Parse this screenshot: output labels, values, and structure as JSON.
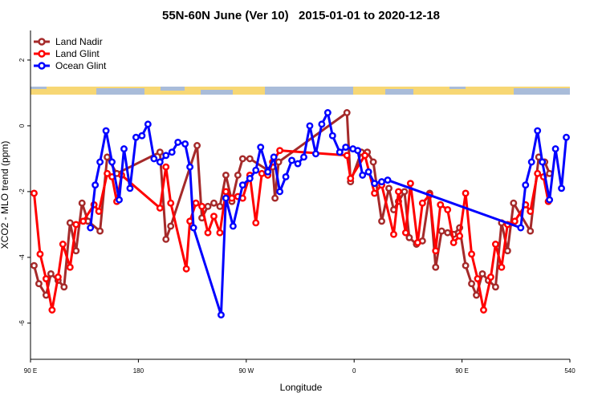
{
  "chart_data": {
    "type": "line",
    "title": "55N-60N June (Ver 10)   2015-01-01 to 2020-12-18",
    "x_label": "Longitude",
    "y_label": "XCO2 - MLO trend (ppm)",
    "xlim": [
      90,
      540
    ],
    "xticks": [
      {
        "value": 90,
        "label": "90 E"
      },
      180,
      {
        "value": 270,
        "label": "90 W"
      },
      {
        "value": 360,
        "label": "0"
      },
      {
        "value": 450,
        "label": "90 E"
      },
      540
    ],
    "ylim": [
      -7.1,
      2.9
    ],
    "yticks": [
      -6,
      -4,
      -2,
      0,
      2
    ],
    "legend": "top-left",
    "series": [
      {
        "name": "Land Nadir",
        "color": "#a52a2a",
        "x": [
          93,
          97,
          103,
          107,
          113,
          118,
          123,
          128,
          133,
          138,
          148,
          154,
          162,
          198,
          203,
          207,
          229,
          233,
          238,
          243,
          248,
          253,
          258,
          263,
          267,
          273,
          288,
          292,
          294,
          297,
          354,
          357,
          366,
          371,
          376,
          383,
          389,
          393,
          397,
          402,
          406,
          412,
          417,
          423,
          428,
          433,
          438,
          443,
          448,
          453,
          458,
          462,
          467,
          472,
          478,
          483,
          488,
          493,
          507,
          514,
          519,
          523
        ],
        "values": [
          -4.25,
          -4.8,
          -5.15,
          -4.5,
          -4.7,
          -4.9,
          -2.95,
          -3.8,
          -2.35,
          -2.9,
          -3.2,
          -0.95,
          -1.45,
          -0.8,
          -3.45,
          -3.05,
          -0.6,
          -2.8,
          -2.45,
          -2.35,
          -2.45,
          -1.5,
          -2.3,
          -1.5,
          -1.0,
          -1.0,
          -1.35,
          -1.25,
          -2.2,
          -1.1,
          0.4,
          -1.7,
          -0.8,
          -0.8,
          -1.1,
          -2.9,
          -1.9,
          -2.55,
          -2.3,
          -2.0,
          -3.4,
          -3.6,
          -3.5,
          -2.05,
          -4.3,
          -3.2,
          -3.25,
          -3.3,
          -3.1,
          -4.25,
          -4.8,
          -5.15,
          -4.5,
          -4.7,
          -4.9,
          -2.95,
          -3.8,
          -2.35,
          -3.2,
          -0.95,
          -1.1,
          -1.45
        ]
      },
      {
        "name": "Land Glint",
        "color": "#ff0000",
        "x": [
          93,
          98,
          103,
          108,
          113,
          117,
          123,
          128,
          134,
          143,
          147,
          154,
          158,
          162,
          166,
          198,
          203,
          207,
          220,
          223,
          228,
          233,
          238,
          243,
          248,
          253,
          258,
          263,
          267,
          273,
          278,
          283,
          288,
          292,
          298,
          354,
          357,
          369,
          377,
          383,
          393,
          397,
          403,
          407,
          413,
          417,
          423,
          428,
          432,
          438,
          443,
          448,
          453,
          458,
          463,
          468,
          474,
          478,
          483,
          488,
          494,
          503,
          507,
          513,
          518,
          522
        ],
        "values": [
          -2.05,
          -3.9,
          -4.65,
          -5.6,
          -4.6,
          -3.6,
          -4.3,
          -3.0,
          -2.9,
          -2.4,
          -2.6,
          -1.45,
          -1.55,
          -2.3,
          -1.5,
          -2.5,
          -1.25,
          -2.35,
          -4.35,
          -2.9,
          -2.35,
          -2.45,
          -3.25,
          -2.75,
          -3.25,
          -2.0,
          -2.2,
          -2.15,
          -2.2,
          -1.5,
          -2.95,
          -1.45,
          -1.5,
          -1.1,
          -0.75,
          -0.9,
          -1.6,
          -0.9,
          -2.05,
          -1.8,
          -3.3,
          -2.0,
          -3.25,
          -1.75,
          -3.55,
          -2.35,
          -2.1,
          -3.8,
          -2.4,
          -2.55,
          -3.55,
          -3.35,
          -2.05,
          -3.9,
          -4.65,
          -5.6,
          -4.6,
          -3.6,
          -4.3,
          -3.0,
          -2.9,
          -2.4,
          -2.6,
          -1.45,
          -1.55,
          -2.3
        ]
      },
      {
        "name": "Ocean Glint",
        "color": "#0000ff",
        "x": [
          140,
          144,
          148,
          153,
          158,
          164,
          168,
          173,
          178,
          183,
          188,
          193,
          198,
          203,
          208,
          213,
          219,
          223,
          226,
          249,
          253,
          259,
          267,
          273,
          278,
          282,
          288,
          293,
          298,
          303,
          308,
          313,
          318,
          323,
          328,
          333,
          338,
          342,
          348,
          353,
          359,
          363,
          367,
          372,
          377,
          383,
          388,
          499,
          503,
          508,
          513,
          517,
          523,
          528,
          533,
          537
        ],
        "values": [
          -3.1,
          -1.8,
          -1.1,
          -0.15,
          -1.1,
          -2.25,
          -0.7,
          -1.9,
          -0.35,
          -0.3,
          0.05,
          -1.0,
          -1.1,
          -0.9,
          -0.8,
          -0.5,
          -0.55,
          -1.25,
          -3.1,
          -5.75,
          -2.2,
          -3.05,
          -1.8,
          -1.6,
          -1.35,
          -0.65,
          -1.4,
          -0.95,
          -2.0,
          -1.55,
          -1.05,
          -1.15,
          -0.95,
          0.0,
          -0.85,
          0.05,
          0.4,
          -0.3,
          -0.8,
          -0.65,
          -0.7,
          -0.75,
          -1.5,
          -1.4,
          -1.75,
          -1.7,
          -1.65,
          -3.1,
          -1.8,
          -1.1,
          -0.15,
          -1.1,
          -2.25,
          -0.7,
          -1.9,
          -0.35
        ]
      }
    ]
  }
}
